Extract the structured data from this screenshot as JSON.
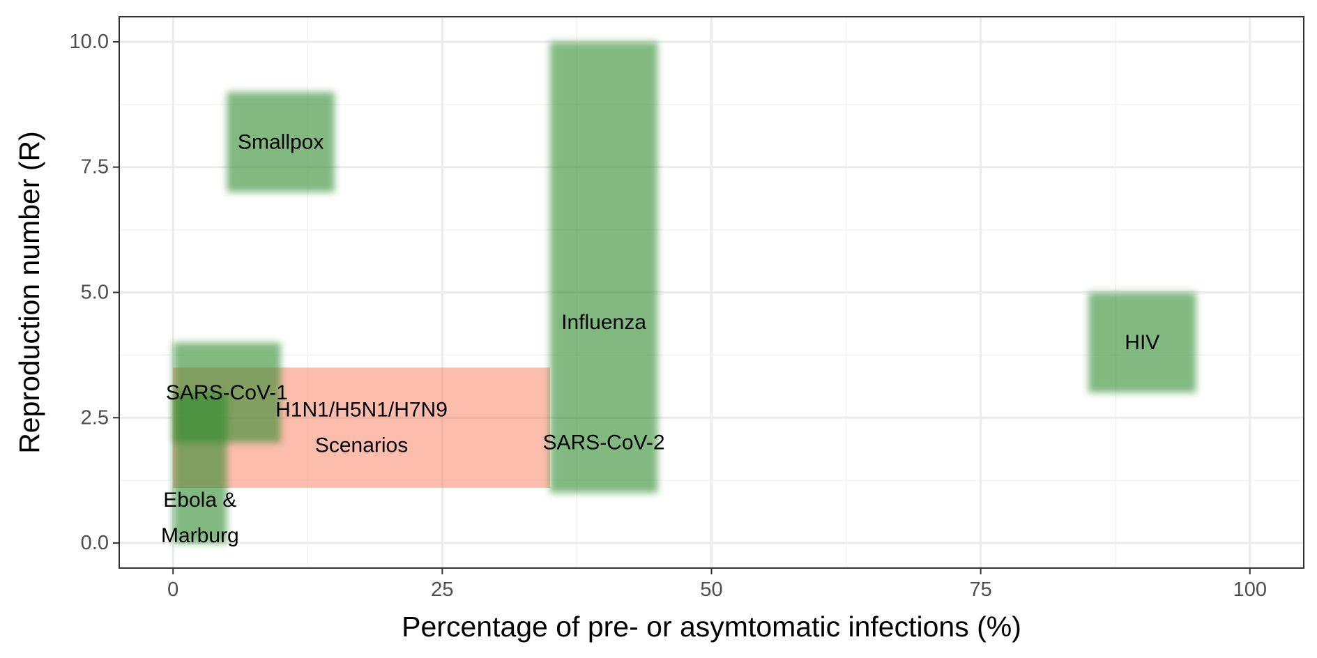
{
  "chart_data": {
    "type": "area",
    "xlabel": "Percentage of pre- or asymtomatic infections (%)",
    "ylabel": "Reproduction number (R)",
    "xlim": [
      -5,
      105
    ],
    "ylim": [
      -0.5,
      10.5
    ],
    "x_ticks": [
      0,
      25,
      50,
      75,
      100
    ],
    "x_tick_labels": [
      "0",
      "25",
      "50",
      "75",
      "100"
    ],
    "y_ticks": [
      0,
      2.5,
      5,
      7.5,
      10
    ],
    "y_tick_labels": [
      "0.0",
      "2.5",
      "5.0",
      "7.5",
      "10.0"
    ],
    "grid": true,
    "colors": {
      "disease_fill": "#2e8b2e",
      "scenario_fill": "#fa8060",
      "panel_border": "#333333",
      "grid_major": "#ebebeb",
      "grid_minor": "#f3f3f3"
    },
    "regions": [
      {
        "kind": "disease",
        "label_lines": [
          "Smallpox"
        ],
        "x": [
          5,
          15
        ],
        "y": [
          7,
          9
        ]
      },
      {
        "kind": "disease",
        "label_lines": [
          "Influenza"
        ],
        "x": [
          35,
          45
        ],
        "y": [
          1,
          10
        ],
        "label_at": [
          40,
          4.4
        ]
      },
      {
        "kind": "disease",
        "label_lines": [
          "SARS-CoV-2"
        ],
        "x": [
          35,
          45
        ],
        "y": [
          1,
          10
        ],
        "label_at": [
          40,
          2
        ]
      },
      {
        "kind": "disease",
        "label_lines": [
          "HIV"
        ],
        "x": [
          85,
          95
        ],
        "y": [
          3,
          5
        ]
      },
      {
        "kind": "disease",
        "label_lines": [
          "SARS-CoV-1"
        ],
        "x": [
          0,
          10
        ],
        "y": [
          2,
          4
        ],
        "label_at": [
          5,
          3
        ]
      },
      {
        "kind": "disease",
        "label_lines": [
          "Ebola &",
          "Marburg"
        ],
        "x": [
          0,
          5
        ],
        "y": [
          0,
          3
        ],
        "label_at": [
          2.5,
          0.5
        ]
      },
      {
        "kind": "scenario",
        "label_lines": [
          "H1N1/H5N1/H7N9",
          "Scenarios"
        ],
        "x": [
          0,
          35
        ],
        "y": [
          1.1,
          3.5
        ],
        "label_at": [
          17.5,
          2.3
        ]
      }
    ]
  }
}
